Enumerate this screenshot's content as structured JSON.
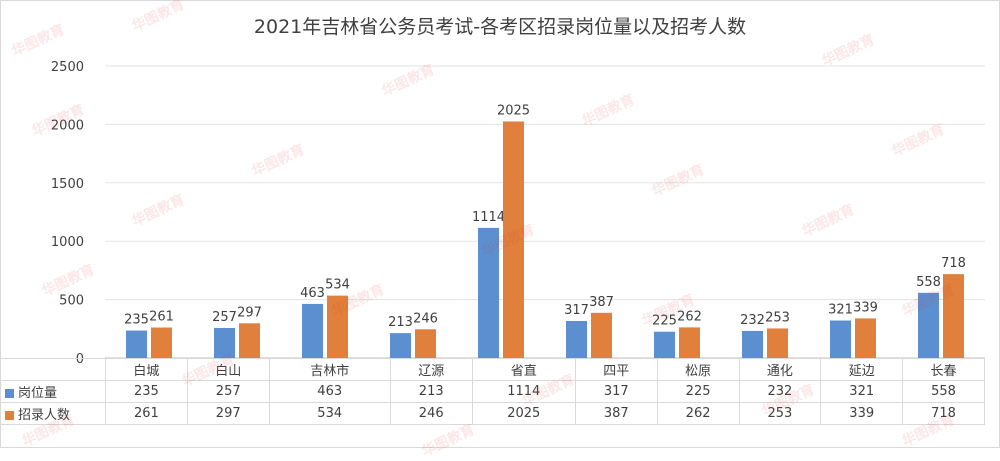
{
  "chart_data": {
    "type": "bar",
    "title": "2021年吉林省公务员考试-各考区招录岗位量以及招考人数",
    "categories": [
      "白城",
      "白山",
      "吉林市",
      "辽源",
      "省直",
      "四平",
      "松原",
      "通化",
      "延边",
      "长春"
    ],
    "series": [
      {
        "name": "岗位量",
        "color": "#5b8fd0",
        "values": [
          235,
          257,
          463,
          213,
          1114,
          317,
          225,
          232,
          321,
          558
        ]
      },
      {
        "name": "招录人数",
        "color": "#e0803c",
        "values": [
          261,
          297,
          534,
          246,
          2025,
          387,
          262,
          253,
          339,
          718
        ]
      }
    ],
    "ylim": [
      0,
      2500
    ],
    "yticks": [
      0,
      500,
      1000,
      1500,
      2000,
      2500
    ],
    "grid": true,
    "data_table": true
  },
  "watermark": "华图教育"
}
